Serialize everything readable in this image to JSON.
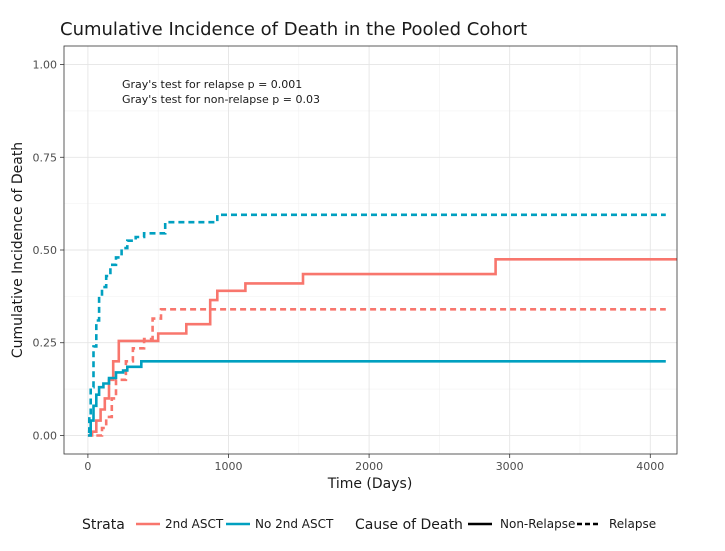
{
  "chart_data": {
    "type": "line",
    "subtype": "step",
    "title": "Cumulative Incidence of Death in the Pooled Cohort",
    "xlabel": "Time (Days)",
    "ylabel": "Cumulative Incidence of Death",
    "xlim": [
      -170,
      4190
    ],
    "ylim": [
      -0.05,
      1.05
    ],
    "x_ticks": [
      0,
      1000,
      2000,
      3000,
      4000
    ],
    "y_ticks": [
      0.0,
      0.25,
      0.5,
      0.75,
      1.0
    ],
    "x_tick_labels": [
      "0",
      "1000",
      "2000",
      "3000",
      "4000"
    ],
    "y_tick_labels": [
      "0.00",
      "0.25",
      "0.50",
      "0.75",
      "1.00"
    ],
    "grid": true,
    "annotations": [
      "Gray's test for relapse p = 0.001",
      "Gray's test for non-relapse p = 0.03"
    ],
    "legend": {
      "placement": "bottom",
      "strata_title": "Strata",
      "strata": [
        {
          "label": "2nd ASCT",
          "color": "#F8766D"
        },
        {
          "label": "No 2nd ASCT",
          "color": "#00A0C0"
        }
      ],
      "cause_title": "Cause of Death",
      "causes": [
        {
          "label": "Non-Relapse",
          "linetype": "solid"
        },
        {
          "label": "Relapse",
          "linetype": "dashed"
        }
      ]
    },
    "series": [
      {
        "strata": "2nd ASCT",
        "cause": "Non-Relapse",
        "color": "#F8766D",
        "dash": false,
        "x": [
          0,
          30,
          60,
          90,
          120,
          150,
          180,
          220,
          500,
          700,
          870,
          920,
          1120,
          1530,
          2900,
          4190
        ],
        "y": [
          0,
          0.01,
          0.04,
          0.07,
          0.1,
          0.15,
          0.2,
          0.255,
          0.275,
          0.3,
          0.365,
          0.39,
          0.41,
          0.435,
          0.475,
          0.475
        ]
      },
      {
        "strata": "2nd ASCT",
        "cause": "Relapse",
        "color": "#F8766D",
        "dash": true,
        "x": [
          60,
          100,
          130,
          170,
          200,
          270,
          320,
          400,
          460,
          520,
          4110
        ],
        "y": [
          0,
          0.02,
          0.05,
          0.1,
          0.15,
          0.2,
          0.235,
          0.26,
          0.315,
          0.34,
          0.34
        ]
      },
      {
        "strata": "No 2nd ASCT",
        "cause": "Non-Relapse",
        "color": "#00A0C0",
        "dash": false,
        "x": [
          0,
          20,
          40,
          60,
          80,
          110,
          150,
          200,
          250,
          280,
          380,
          4110
        ],
        "y": [
          0,
          0.04,
          0.08,
          0.11,
          0.13,
          0.14,
          0.155,
          0.17,
          0.175,
          0.185,
          0.2,
          0.2
        ]
      },
      {
        "strata": "No 2nd ASCT",
        "cause": "Relapse",
        "color": "#00A0C0",
        "dash": true,
        "x": [
          0,
          10,
          20,
          40,
          60,
          80,
          100,
          130,
          160,
          200,
          240,
          280,
          340,
          400,
          550,
          920,
          4110
        ],
        "y": [
          0.01,
          0.05,
          0.13,
          0.24,
          0.31,
          0.37,
          0.4,
          0.43,
          0.46,
          0.48,
          0.505,
          0.525,
          0.535,
          0.545,
          0.575,
          0.595,
          0.595
        ]
      }
    ]
  }
}
